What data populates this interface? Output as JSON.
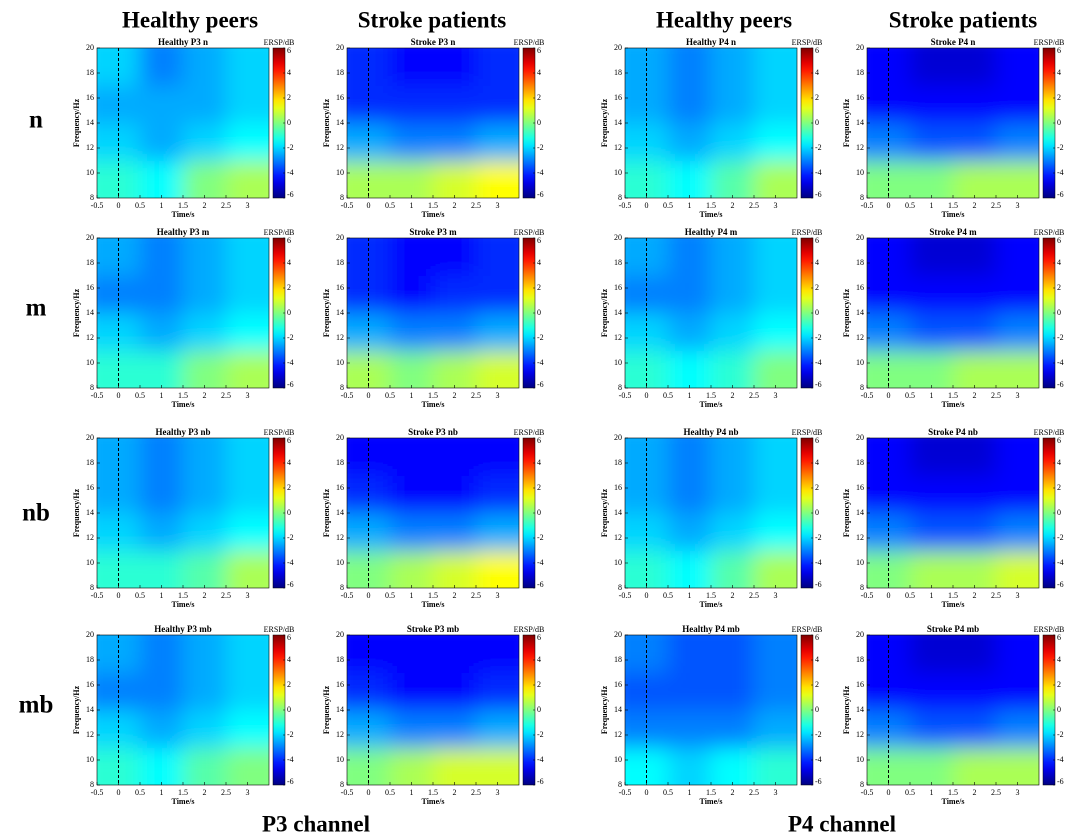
{
  "figure": {
    "column_headers": [
      "Healthy peers",
      "Stroke patients",
      "Healthy peers",
      "Stroke patients"
    ],
    "row_labels": [
      "n",
      "m",
      "nb",
      "mb"
    ],
    "channel_labels": [
      "P3 channel",
      "P4 channel"
    ]
  },
  "chart_data": [
    {
      "type": "heatmap",
      "title": "Healthy P3 n",
      "xlabel": "Time/s",
      "ylabel": "Frequency/Hz",
      "clabel": "ERSP/dB",
      "xlim": [
        -0.5,
        3.5
      ],
      "ylim": [
        8,
        20
      ],
      "xticks": [
        -0.5,
        0,
        0.5,
        1,
        1.5,
        2,
        2.5,
        3
      ],
      "yticks": [
        8,
        10,
        12,
        14,
        16,
        18,
        20
      ],
      "clim": [
        -6,
        6
      ],
      "cticks": [
        -6,
        -4,
        -2,
        0,
        2,
        4,
        6
      ],
      "xbins": [
        -0.5,
        0.5,
        1.5,
        2.5,
        3.5
      ],
      "ybins": [
        8,
        11,
        14,
        17,
        20
      ],
      "event_time": 0,
      "colormap": "jet",
      "z": [
        [
          -1,
          -1.5,
          0,
          0.5
        ],
        [
          -2,
          -2.5,
          -2,
          -1.5
        ],
        [
          -2.5,
          -2.5,
          -2.5,
          -2
        ],
        [
          -2,
          -3,
          -2.5,
          -2
        ]
      ]
    },
    {
      "type": "heatmap",
      "title": "Stroke P3 n",
      "xlabel": "Time/s",
      "ylabel": "Frequency/Hz",
      "clabel": "ERSP/dB",
      "xlim": [
        -0.5,
        3.5
      ],
      "ylim": [
        8,
        20
      ],
      "xticks": [
        -0.5,
        0,
        0.5,
        1,
        1.5,
        2,
        2.5,
        3
      ],
      "yticks": [
        8,
        10,
        12,
        14,
        16,
        18,
        20
      ],
      "clim": [
        -6,
        6
      ],
      "cticks": [
        -6,
        -4,
        -2,
        0,
        2,
        4,
        6
      ],
      "xbins": [
        -0.5,
        0.5,
        1.5,
        2.5,
        3.5
      ],
      "ybins": [
        8,
        11,
        14,
        17,
        20
      ],
      "event_time": 0,
      "colormap": "jet",
      "z": [
        [
          0.5,
          0.5,
          1,
          1.5
        ],
        [
          -2.5,
          -3,
          -3,
          -2.5
        ],
        [
          -4,
          -4,
          -4,
          -4
        ],
        [
          -4,
          -4.5,
          -4.5,
          -4
        ]
      ]
    },
    {
      "type": "heatmap",
      "title": "Healthy P4 n",
      "xlabel": "Time/s",
      "ylabel": "Frequency/Hz",
      "clabel": "ERSP/dB",
      "xlim": [
        -0.5,
        3.5
      ],
      "ylim": [
        8,
        20
      ],
      "xticks": [
        -0.5,
        0,
        0.5,
        1,
        1.5,
        2,
        2.5,
        3
      ],
      "yticks": [
        8,
        10,
        12,
        14,
        16,
        18,
        20
      ],
      "clim": [
        -6,
        6
      ],
      "cticks": [
        -6,
        -4,
        -2,
        0,
        2,
        4,
        6
      ],
      "xbins": [
        -0.5,
        0.5,
        1.5,
        2.5,
        3.5
      ],
      "ybins": [
        8,
        11,
        14,
        17,
        20
      ],
      "event_time": 0,
      "colormap": "jet",
      "z": [
        [
          -1,
          -1.5,
          -0.5,
          0.5
        ],
        [
          -2,
          -2.5,
          -2,
          -1.5
        ],
        [
          -2.5,
          -3,
          -2.5,
          -2
        ],
        [
          -2.5,
          -3,
          -2.5,
          -2
        ]
      ]
    },
    {
      "type": "heatmap",
      "title": "Stroke P4 n",
      "xlabel": "Time/s",
      "ylabel": "Frequency/Hz",
      "clabel": "ERSP/dB",
      "xlim": [
        -0.5,
        3.5
      ],
      "ylim": [
        8,
        20
      ],
      "xticks": [
        -0.5,
        0,
        0.5,
        1,
        1.5,
        2,
        2.5,
        3
      ],
      "yticks": [
        8,
        10,
        12,
        14,
        16,
        18,
        20
      ],
      "clim": [
        -6,
        6
      ],
      "cticks": [
        -6,
        -4,
        -2,
        0,
        2,
        4,
        6
      ],
      "xbins": [
        -0.5,
        0.5,
        1.5,
        2.5,
        3.5
      ],
      "ybins": [
        8,
        11,
        14,
        17,
        20
      ],
      "event_time": 0,
      "colormap": "jet",
      "z": [
        [
          0,
          0,
          0.5,
          0.5
        ],
        [
          -3,
          -3.5,
          -3.5,
          -3
        ],
        [
          -4.5,
          -4.5,
          -4.5,
          -4.5
        ],
        [
          -4.5,
          -5,
          -5,
          -4.5
        ]
      ]
    },
    {
      "type": "heatmap",
      "title": "Healthy P3 m",
      "xlabel": "Time/s",
      "ylabel": "Frequency/Hz",
      "clabel": "ERSP/dB",
      "xlim": [
        -0.5,
        3.5
      ],
      "ylim": [
        8,
        20
      ],
      "xticks": [
        -0.5,
        0,
        0.5,
        1,
        1.5,
        2,
        2.5,
        3
      ],
      "yticks": [
        8,
        10,
        12,
        14,
        16,
        18,
        20
      ],
      "clim": [
        -6,
        6
      ],
      "cticks": [
        -6,
        -4,
        -2,
        0,
        2,
        4,
        6
      ],
      "xbins": [
        -0.5,
        0.5,
        1.5,
        2.5,
        3.5
      ],
      "ybins": [
        8,
        11,
        14,
        17,
        20
      ],
      "event_time": 0,
      "colormap": "jet",
      "z": [
        [
          -1,
          -1,
          0,
          0.5
        ],
        [
          -2,
          -2.5,
          -2,
          -1.5
        ],
        [
          -3,
          -3,
          -2.5,
          -2
        ],
        [
          -2.5,
          -3,
          -2.5,
          -2
        ]
      ]
    },
    {
      "type": "heatmap",
      "title": "Stroke P3 m",
      "xlabel": "Time/s",
      "ylabel": "Frequency/Hz",
      "clabel": "ERSP/dB",
      "xlim": [
        -0.5,
        3.5
      ],
      "ylim": [
        8,
        20
      ],
      "xticks": [
        -0.5,
        0,
        0.5,
        1,
        1.5,
        2,
        2.5,
        3
      ],
      "yticks": [
        8,
        10,
        12,
        14,
        16,
        18,
        20
      ],
      "clim": [
        -6,
        6
      ],
      "cticks": [
        -6,
        -4,
        -2,
        0,
        2,
        4,
        6
      ],
      "xbins": [
        -0.5,
        0.5,
        1.5,
        2.5,
        3.5
      ],
      "ybins": [
        8,
        11,
        14,
        17,
        20
      ],
      "event_time": 0,
      "colormap": "jet",
      "z": [
        [
          0.5,
          0,
          0.5,
          1
        ],
        [
          -2.5,
          -3,
          -3,
          -2.5
        ],
        [
          -4,
          -4.5,
          -4,
          -4
        ],
        [
          -4,
          -4.5,
          -4.5,
          -4
        ]
      ]
    },
    {
      "type": "heatmap",
      "title": "Healthy P4 m",
      "xlabel": "Time/s",
      "ylabel": "Frequency/Hz",
      "clabel": "ERSP/dB",
      "xlim": [
        -0.5,
        3.5
      ],
      "ylim": [
        8,
        20
      ],
      "xticks": [
        -0.5,
        0,
        0.5,
        1,
        1.5,
        2,
        2.5,
        3
      ],
      "yticks": [
        8,
        10,
        12,
        14,
        16,
        18,
        20
      ],
      "clim": [
        -6,
        6
      ],
      "cticks": [
        -6,
        -4,
        -2,
        0,
        2,
        4,
        6
      ],
      "xbins": [
        -0.5,
        0.5,
        1.5,
        2.5,
        3.5
      ],
      "ybins": [
        8,
        11,
        14,
        17,
        20
      ],
      "event_time": 0,
      "colormap": "jet",
      "z": [
        [
          -1,
          -1.5,
          -1,
          0
        ],
        [
          -2,
          -2.5,
          -2,
          -1.5
        ],
        [
          -3,
          -3,
          -2.5,
          -2
        ],
        [
          -2.5,
          -3,
          -2.5,
          -2
        ]
      ]
    },
    {
      "type": "heatmap",
      "title": "Stroke P4 m",
      "xlabel": "Time/s",
      "ylabel": "Frequency/Hz",
      "clabel": "ERSP/dB",
      "xlim": [
        -0.5,
        3.5
      ],
      "ylim": [
        8,
        20
      ],
      "xticks": [
        -0.5,
        0,
        0.5,
        1,
        1.5,
        2,
        2.5,
        3
      ],
      "yticks": [
        8,
        10,
        12,
        14,
        16,
        18,
        20
      ],
      "clim": [
        -6,
        6
      ],
      "cticks": [
        -6,
        -4,
        -2,
        0,
        2,
        4,
        6
      ],
      "xbins": [
        -0.5,
        0.5,
        1.5,
        2.5,
        3.5
      ],
      "ybins": [
        8,
        11,
        14,
        17,
        20
      ],
      "event_time": 0,
      "colormap": "jet",
      "z": [
        [
          0,
          0,
          0.5,
          0.5
        ],
        [
          -3,
          -3.5,
          -3.5,
          -3
        ],
        [
          -4.5,
          -4.5,
          -4.5,
          -4.5
        ],
        [
          -4.5,
          -5,
          -5,
          -4.5
        ]
      ]
    },
    {
      "type": "heatmap",
      "title": "Healthy P3 nb",
      "xlabel": "Time/s",
      "ylabel": "Frequency/Hz",
      "clabel": "ERSP/dB",
      "xlim": [
        -0.5,
        3.5
      ],
      "ylim": [
        8,
        20
      ],
      "xticks": [
        -0.5,
        0,
        0.5,
        1,
        1.5,
        2,
        2.5,
        3
      ],
      "yticks": [
        8,
        10,
        12,
        14,
        16,
        18,
        20
      ],
      "clim": [
        -6,
        6
      ],
      "cticks": [
        -6,
        -4,
        -2,
        0,
        2,
        4,
        6
      ],
      "xbins": [
        -0.5,
        0.5,
        1.5,
        2.5,
        3.5
      ],
      "ybins": [
        8,
        11,
        14,
        17,
        20
      ],
      "event_time": 0,
      "colormap": "jet",
      "z": [
        [
          -1,
          -1,
          -0.5,
          0.5
        ],
        [
          -2,
          -2.5,
          -2,
          -1.5
        ],
        [
          -2.5,
          -3,
          -2.5,
          -2
        ],
        [
          -2.5,
          -3,
          -2.5,
          -2
        ]
      ]
    },
    {
      "type": "heatmap",
      "title": "Stroke P3 nb",
      "xlabel": "Time/s",
      "ylabel": "Frequency/Hz",
      "clabel": "ERSP/dB",
      "xlim": [
        -0.5,
        3.5
      ],
      "ylim": [
        8,
        20
      ],
      "xticks": [
        -0.5,
        0,
        0.5,
        1,
        1.5,
        2,
        2.5,
        3
      ],
      "yticks": [
        8,
        10,
        12,
        14,
        16,
        18,
        20
      ],
      "clim": [
        -6,
        6
      ],
      "cticks": [
        -6,
        -4,
        -2,
        0,
        2,
        4,
        6
      ],
      "xbins": [
        -0.5,
        0.5,
        1.5,
        2.5,
        3.5
      ],
      "ybins": [
        8,
        11,
        14,
        17,
        20
      ],
      "event_time": 0,
      "colormap": "jet",
      "z": [
        [
          0,
          0.5,
          1,
          1.5
        ],
        [
          -2.5,
          -3,
          -3,
          -2.5
        ],
        [
          -4,
          -4.5,
          -4.5,
          -4
        ],
        [
          -4.5,
          -4.5,
          -4.5,
          -4.5
        ]
      ]
    },
    {
      "type": "heatmap",
      "title": "Healthy P4 nb",
      "xlabel": "Time/s",
      "ylabel": "Frequency/Hz",
      "clabel": "ERSP/dB",
      "xlim": [
        -0.5,
        3.5
      ],
      "ylim": [
        8,
        20
      ],
      "xticks": [
        -0.5,
        0,
        0.5,
        1,
        1.5,
        2,
        2.5,
        3
      ],
      "yticks": [
        8,
        10,
        12,
        14,
        16,
        18,
        20
      ],
      "clim": [
        -6,
        6
      ],
      "cticks": [
        -6,
        -4,
        -2,
        0,
        2,
        4,
        6
      ],
      "xbins": [
        -0.5,
        0.5,
        1.5,
        2.5,
        3.5
      ],
      "ybins": [
        8,
        11,
        14,
        17,
        20
      ],
      "event_time": 0,
      "colormap": "jet",
      "z": [
        [
          -1,
          -1.5,
          -0.5,
          0.5
        ],
        [
          -2,
          -2.5,
          -2,
          -1.5
        ],
        [
          -2.5,
          -3,
          -2.5,
          -2
        ],
        [
          -2.5,
          -3,
          -2.5,
          -2
        ]
      ]
    },
    {
      "type": "heatmap",
      "title": "Stroke P4 nb",
      "xlabel": "Time/s",
      "ylabel": "Frequency/Hz",
      "clabel": "ERSP/dB",
      "xlim": [
        -0.5,
        3.5
      ],
      "ylim": [
        8,
        20
      ],
      "xticks": [
        -0.5,
        0,
        0.5,
        1,
        1.5,
        2,
        2.5,
        3
      ],
      "yticks": [
        8,
        10,
        12,
        14,
        16,
        18,
        20
      ],
      "clim": [
        -6,
        6
      ],
      "cticks": [
        -6,
        -4,
        -2,
        0,
        2,
        4,
        6
      ],
      "xbins": [
        -0.5,
        0.5,
        1.5,
        2.5,
        3.5
      ],
      "ybins": [
        8,
        11,
        14,
        17,
        20
      ],
      "event_time": 0,
      "colormap": "jet",
      "z": [
        [
          0,
          0.5,
          0.5,
          1
        ],
        [
          -3,
          -3.5,
          -3.5,
          -3
        ],
        [
          -4.5,
          -4.5,
          -4.5,
          -4.5
        ],
        [
          -4.5,
          -5,
          -5,
          -4.5
        ]
      ]
    },
    {
      "type": "heatmap",
      "title": "Healthy P3 mb",
      "xlabel": "Time/s",
      "ylabel": "Frequency/Hz",
      "clabel": "ERSP/dB",
      "xlim": [
        -0.5,
        3.5
      ],
      "ylim": [
        8,
        20
      ],
      "xticks": [
        -0.5,
        0,
        0.5,
        1,
        1.5,
        2,
        2.5,
        3
      ],
      "yticks": [
        8,
        10,
        12,
        14,
        16,
        18,
        20
      ],
      "clim": [
        -6,
        6
      ],
      "cticks": [
        -6,
        -4,
        -2,
        0,
        2,
        4,
        6
      ],
      "xbins": [
        -0.5,
        0.5,
        1.5,
        2.5,
        3.5
      ],
      "ybins": [
        8,
        11,
        14,
        17,
        20
      ],
      "event_time": 0,
      "colormap": "jet",
      "z": [
        [
          -1,
          -1.5,
          -0.5,
          0
        ],
        [
          -2,
          -2.5,
          -2,
          -1.5
        ],
        [
          -3,
          -3,
          -2.5,
          -2
        ],
        [
          -2.5,
          -3,
          -2.5,
          -2
        ]
      ]
    },
    {
      "type": "heatmap",
      "title": "Stroke P3 mb",
      "xlabel": "Time/s",
      "ylabel": "Frequency/Hz",
      "clabel": "ERSP/dB",
      "xlim": [
        -0.5,
        3.5
      ],
      "ylim": [
        8,
        20
      ],
      "xticks": [
        -0.5,
        0,
        0.5,
        1,
        1.5,
        2,
        2.5,
        3
      ],
      "yticks": [
        8,
        10,
        12,
        14,
        16,
        18,
        20
      ],
      "clim": [
        -6,
        6
      ],
      "cticks": [
        -6,
        -4,
        -2,
        0,
        2,
        4,
        6
      ],
      "xbins": [
        -0.5,
        0.5,
        1.5,
        2.5,
        3.5
      ],
      "ybins": [
        8,
        11,
        14,
        17,
        20
      ],
      "event_time": 0,
      "colormap": "jet",
      "z": [
        [
          0,
          0.5,
          1,
          1
        ],
        [
          -2.5,
          -3,
          -3,
          -2.5
        ],
        [
          -4,
          -4.5,
          -4.5,
          -4
        ],
        [
          -4.5,
          -4.5,
          -4.5,
          -4.5
        ]
      ]
    },
    {
      "type": "heatmap",
      "title": "Healthy P4 mb",
      "xlabel": "Time/s",
      "ylabel": "Frequency/Hz",
      "clabel": "ERSP/dB",
      "xlim": [
        -0.5,
        3.5
      ],
      "ylim": [
        8,
        20
      ],
      "xticks": [
        -0.5,
        0,
        0.5,
        1,
        1.5,
        2,
        2.5,
        3
      ],
      "yticks": [
        8,
        10,
        12,
        14,
        16,
        18,
        20
      ],
      "clim": [
        -6,
        6
      ],
      "cticks": [
        -6,
        -4,
        -2,
        0,
        2,
        4,
        6
      ],
      "xbins": [
        -0.5,
        0.5,
        1.5,
        2.5,
        3.5
      ],
      "ybins": [
        8,
        11,
        14,
        17,
        20
      ],
      "event_time": 0,
      "colormap": "jet",
      "z": [
        [
          -1.5,
          -2,
          -1.5,
          -1
        ],
        [
          -3,
          -3,
          -3,
          -2.5
        ],
        [
          -3.5,
          -3.5,
          -3.5,
          -3
        ],
        [
          -3,
          -3.5,
          -3.5,
          -3
        ]
      ]
    },
    {
      "type": "heatmap",
      "title": "Stroke P4 mb",
      "xlabel": "Time/s",
      "ylabel": "Frequency/Hz",
      "clabel": "ERSP/dB",
      "xlim": [
        -0.5,
        3.5
      ],
      "ylim": [
        8,
        20
      ],
      "xticks": [
        -0.5,
        0,
        0.5,
        1,
        1.5,
        2,
        2.5,
        3
      ],
      "yticks": [
        8,
        10,
        12,
        14,
        16,
        18,
        20
      ],
      "clim": [
        -6,
        6
      ],
      "cticks": [
        -6,
        -4,
        -2,
        0,
        2,
        4,
        6
      ],
      "xbins": [
        -0.5,
        0.5,
        1.5,
        2.5,
        3.5
      ],
      "ybins": [
        8,
        11,
        14,
        17,
        20
      ],
      "event_time": 0,
      "colormap": "jet",
      "z": [
        [
          0,
          0,
          0.5,
          0.5
        ],
        [
          -3,
          -3.5,
          -3.5,
          -3
        ],
        [
          -4.5,
          -4.5,
          -4.5,
          -4.5
        ],
        [
          -4.5,
          -5,
          -5,
          -4.5
        ]
      ]
    }
  ]
}
